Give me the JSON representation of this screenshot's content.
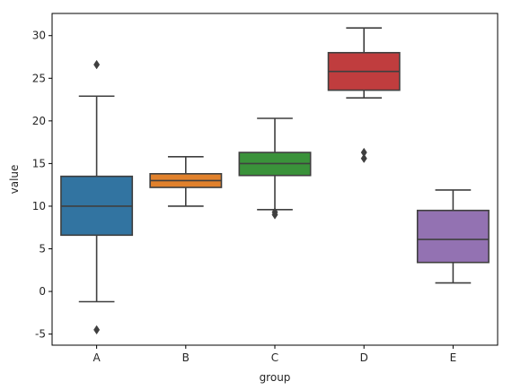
{
  "chart_data": {
    "type": "box",
    "xlabel": "group",
    "ylabel": "value",
    "ylim": [
      -6.3,
      32.6
    ],
    "yticks": [
      -5,
      0,
      5,
      10,
      15,
      20,
      25,
      30
    ],
    "grid": false,
    "categories": [
      "A",
      "B",
      "C",
      "D",
      "E"
    ],
    "boxes": [
      {
        "category": "A",
        "whisker_low": -1.2,
        "q1": 6.6,
        "median": 10.0,
        "q3": 13.5,
        "whisker_high": 22.9,
        "outliers": [
          26.6,
          -4.5
        ],
        "color": "#3274a1"
      },
      {
        "category": "B",
        "whisker_low": 10.0,
        "q1": 12.2,
        "median": 13.0,
        "q3": 13.8,
        "whisker_high": 15.8,
        "outliers": [],
        "color": "#e1812c"
      },
      {
        "category": "C",
        "whisker_low": 9.6,
        "q1": 13.6,
        "median": 15.0,
        "q3": 16.3,
        "whisker_high": 20.3,
        "outliers": [
          9.3,
          9.0
        ],
        "color": "#3a923a"
      },
      {
        "category": "D",
        "whisker_low": 22.7,
        "q1": 23.6,
        "median": 25.8,
        "q3": 28.0,
        "whisker_high": 30.9,
        "outliers": [
          16.3,
          15.6
        ],
        "color": "#c03d3e"
      },
      {
        "category": "E",
        "whisker_low": 1.0,
        "q1": 3.4,
        "median": 6.1,
        "q3": 9.5,
        "whisker_high": 11.9,
        "outliers": [],
        "color": "#9372b2"
      }
    ]
  }
}
